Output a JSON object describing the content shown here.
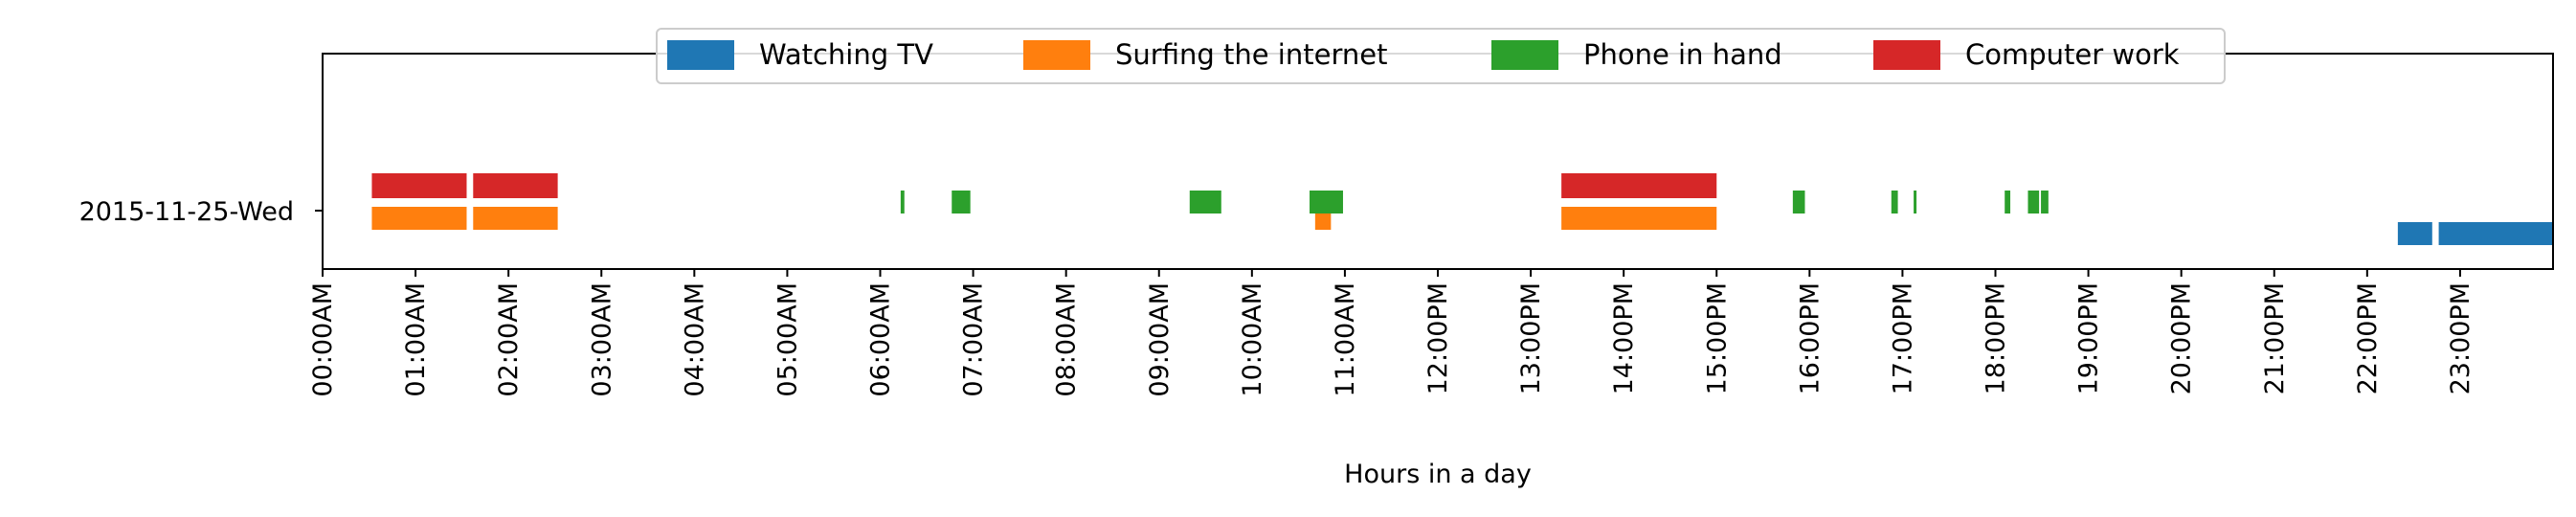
{
  "chart_data": {
    "type": "timeline",
    "xlabel": "Hours in a day",
    "ylabel": "",
    "xlim": [
      0,
      24
    ],
    "x_tick_labels": [
      "00:00AM",
      "01:00AM",
      "02:00AM",
      "03:00AM",
      "04:00AM",
      "05:00AM",
      "06:00AM",
      "07:00AM",
      "08:00AM",
      "09:00AM",
      "10:00AM",
      "11:00AM",
      "12:00PM",
      "13:00PM",
      "14:00PM",
      "15:00PM",
      "16:00PM",
      "17:00PM",
      "18:00PM",
      "19:00PM",
      "20:00PM",
      "21:00PM",
      "22:00PM",
      "23:00PM"
    ],
    "y_categories": [
      "2015-11-25-Wed"
    ],
    "legend_position": "top-center",
    "grid": false,
    "series": [
      {
        "name": "Watching TV",
        "color": "#1f77b4",
        "intervals": [
          [
            22.33,
            22.7
          ],
          [
            22.77,
            24.0
          ]
        ]
      },
      {
        "name": "Surfing the internet",
        "color": "#ff7f0e",
        "intervals": [
          [
            0.53,
            1.55
          ],
          [
            1.62,
            2.53
          ],
          [
            10.68,
            10.85
          ],
          [
            13.33,
            15.0
          ]
        ]
      },
      {
        "name": "Phone in hand",
        "color": "#2ca02c",
        "intervals": [
          [
            6.22,
            6.26
          ],
          [
            6.77,
            6.97
          ],
          [
            9.33,
            9.67
          ],
          [
            10.62,
            10.98
          ],
          [
            15.82,
            15.95
          ],
          [
            16.88,
            16.95
          ],
          [
            17.12,
            17.15
          ],
          [
            18.1,
            18.16
          ],
          [
            18.35,
            18.47
          ],
          [
            18.49,
            18.57
          ]
        ]
      },
      {
        "name": "Computer work",
        "color": "#d62728",
        "intervals": [
          [
            0.53,
            1.55
          ],
          [
            1.62,
            2.53
          ],
          [
            13.33,
            15.0
          ]
        ]
      }
    ]
  }
}
